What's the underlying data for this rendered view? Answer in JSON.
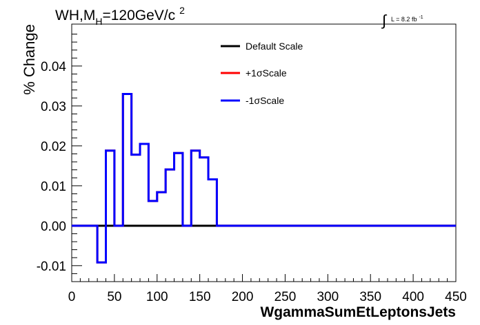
{
  "header": {
    "title_main": "WH,M",
    "title_sub": "H",
    "title_rest": "=120GeV/c",
    "title_sup": "2",
    "lumi_integral": "∫",
    "lumi_text": "L = 8.2 fb",
    "lumi_sup": "-1"
  },
  "chart_data": {
    "type": "line",
    "style": "step-histogram",
    "xlabel": "WgammaSumEtLeptonsJets",
    "ylabel": "% Change",
    "xlim": [
      0,
      450
    ],
    "ylim": [
      -0.014,
      0.0505
    ],
    "x_ticks": [
      "0",
      "50",
      "100",
      "150",
      "200",
      "250",
      "300",
      "350",
      "400",
      "450"
    ],
    "y_ticks": [
      "-0.01",
      "0.00",
      "0.01",
      "0.02",
      "0.03",
      "0.04"
    ],
    "bin_width": 10,
    "bins_x_low": [
      0,
      10,
      20,
      30,
      40,
      50,
      60,
      70,
      80,
      90,
      100,
      110,
      120,
      130,
      140,
      150,
      160,
      170,
      180,
      190,
      200,
      210,
      220,
      230,
      240,
      250,
      260,
      270,
      280,
      290,
      300,
      310,
      320,
      330,
      340,
      350,
      360,
      370,
      380,
      390,
      400,
      410,
      420,
      430,
      440
    ],
    "legend_position": "top-center",
    "series": [
      {
        "name": "Default Scale",
        "color": "#000000",
        "values": [
          0,
          0,
          0,
          0,
          0,
          0,
          0,
          0,
          0,
          0,
          0,
          0,
          0,
          0,
          0,
          0,
          0,
          0,
          0,
          0,
          0,
          0,
          0,
          0,
          0,
          0,
          0,
          0,
          0,
          0,
          0,
          0,
          0,
          0,
          0,
          0,
          0,
          0,
          0,
          0,
          0,
          0,
          0,
          0,
          0
        ]
      },
      {
        "name": "+1σScale",
        "color": "#ff0000",
        "values": [
          0,
          0,
          0,
          -0.0092,
          0.0188,
          0,
          0.033,
          0.0178,
          0.0205,
          0.0062,
          0.0084,
          0.0141,
          0.0182,
          0,
          0.0188,
          0.0171,
          0.0116,
          0,
          0,
          0,
          0,
          0,
          0,
          0,
          0,
          0,
          0,
          0,
          0,
          0,
          0,
          0,
          0,
          0,
          0,
          0,
          0,
          0,
          0,
          0,
          0,
          0,
          0,
          0,
          0
        ]
      },
      {
        "name": "-1σScale",
        "color": "#0000ff",
        "values": [
          0,
          0,
          0,
          -0.0092,
          0.0188,
          0,
          0.033,
          0.0178,
          0.0205,
          0.0062,
          0.0084,
          0.0141,
          0.0182,
          0,
          0.0188,
          0.0171,
          0.0116,
          0,
          0,
          0,
          0,
          0,
          0,
          0,
          0,
          0,
          0,
          0,
          0,
          0,
          0,
          0,
          0,
          0,
          0,
          0,
          0,
          0,
          0,
          0,
          0,
          0,
          0,
          0,
          0
        ]
      }
    ]
  }
}
